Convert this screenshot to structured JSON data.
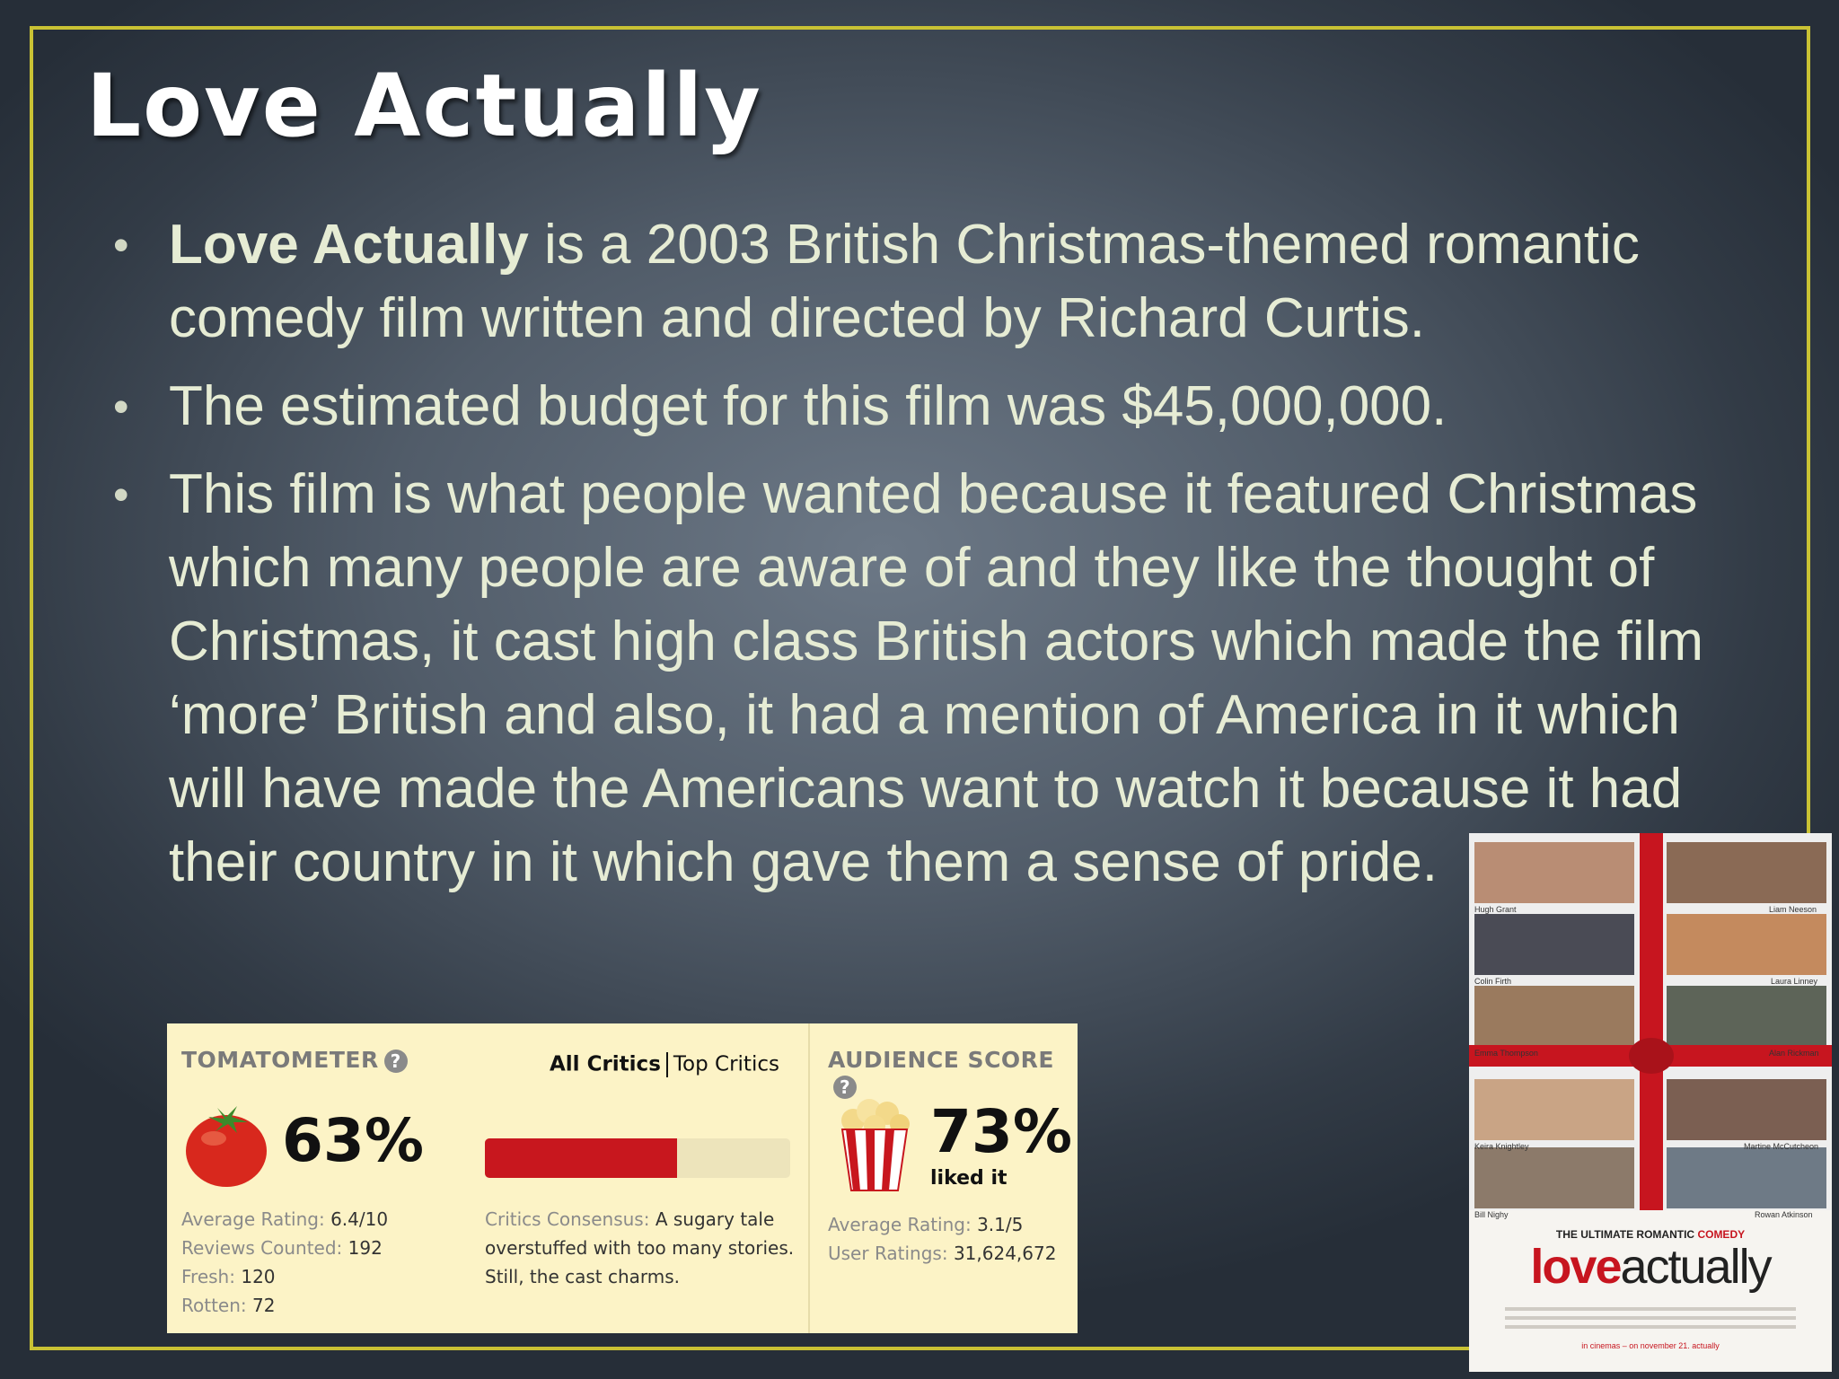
{
  "slide": {
    "title": "Love Actually",
    "bullets": [
      {
        "bold": "Love Actually",
        "text": " is a 2003 British Christmas-themed romantic comedy film written and directed by Richard Curtis."
      },
      {
        "bold": "",
        "text": "The estimated budget for this film was $45,000,000."
      },
      {
        "bold": "",
        "text": "This film is what people wanted because it featured Christmas which many people are aware of and they like the thought of Christmas, it cast high class British actors which made the film ‘more’ British and also, it had a mention of America in it which will have made the Americans want to watch it because it had their country in it which gave them a sense of pride."
      }
    ],
    "frame_color": "#c9c234"
  },
  "rotten_tomatoes": {
    "tomatometer_label": "TOMATOMETER",
    "help_icon": "?",
    "tab_all": "All Critics",
    "tab_top": "Top Critics",
    "tomatometer_value": "63%",
    "tomatometer_fraction": 0.63,
    "avg_rating_label": "Average Rating:",
    "avg_rating_value": "6.4/10",
    "reviews_label": "Reviews Counted:",
    "reviews_value": "192",
    "fresh_label": "Fresh:",
    "fresh_value": "120",
    "rotten_label": "Rotten:",
    "rotten_value": "72",
    "consensus_label": "Critics Consensus:",
    "consensus_text": "A sugary tale overstuffed with too many stories. Still, the cast charms.",
    "audience_label": "AUDIENCE SCORE",
    "audience_value": "73%",
    "liked_it": "liked it",
    "aud_avg_label": "Average Rating:",
    "aud_avg_value": "3.1/5",
    "user_ratings_label": "User Ratings:",
    "user_ratings_value": "31,624,672",
    "bar_color": "#c8171e"
  },
  "poster": {
    "names": [
      "Hugh Grant",
      "Liam Neeson",
      "Colin Firth",
      "Laura Linney",
      "Emma Thompson",
      "Alan Rickman",
      "Keira Knightley",
      "Martine McCutcheon",
      "Bill Nighy",
      "Rowan Atkinson"
    ],
    "tagline_a": "THE ULTIMATE ROMANTIC ",
    "tagline_b": "COMEDY",
    "logo_a": "love",
    "logo_b": "actually",
    "footer": "in cinemas – on november 21. actually"
  }
}
